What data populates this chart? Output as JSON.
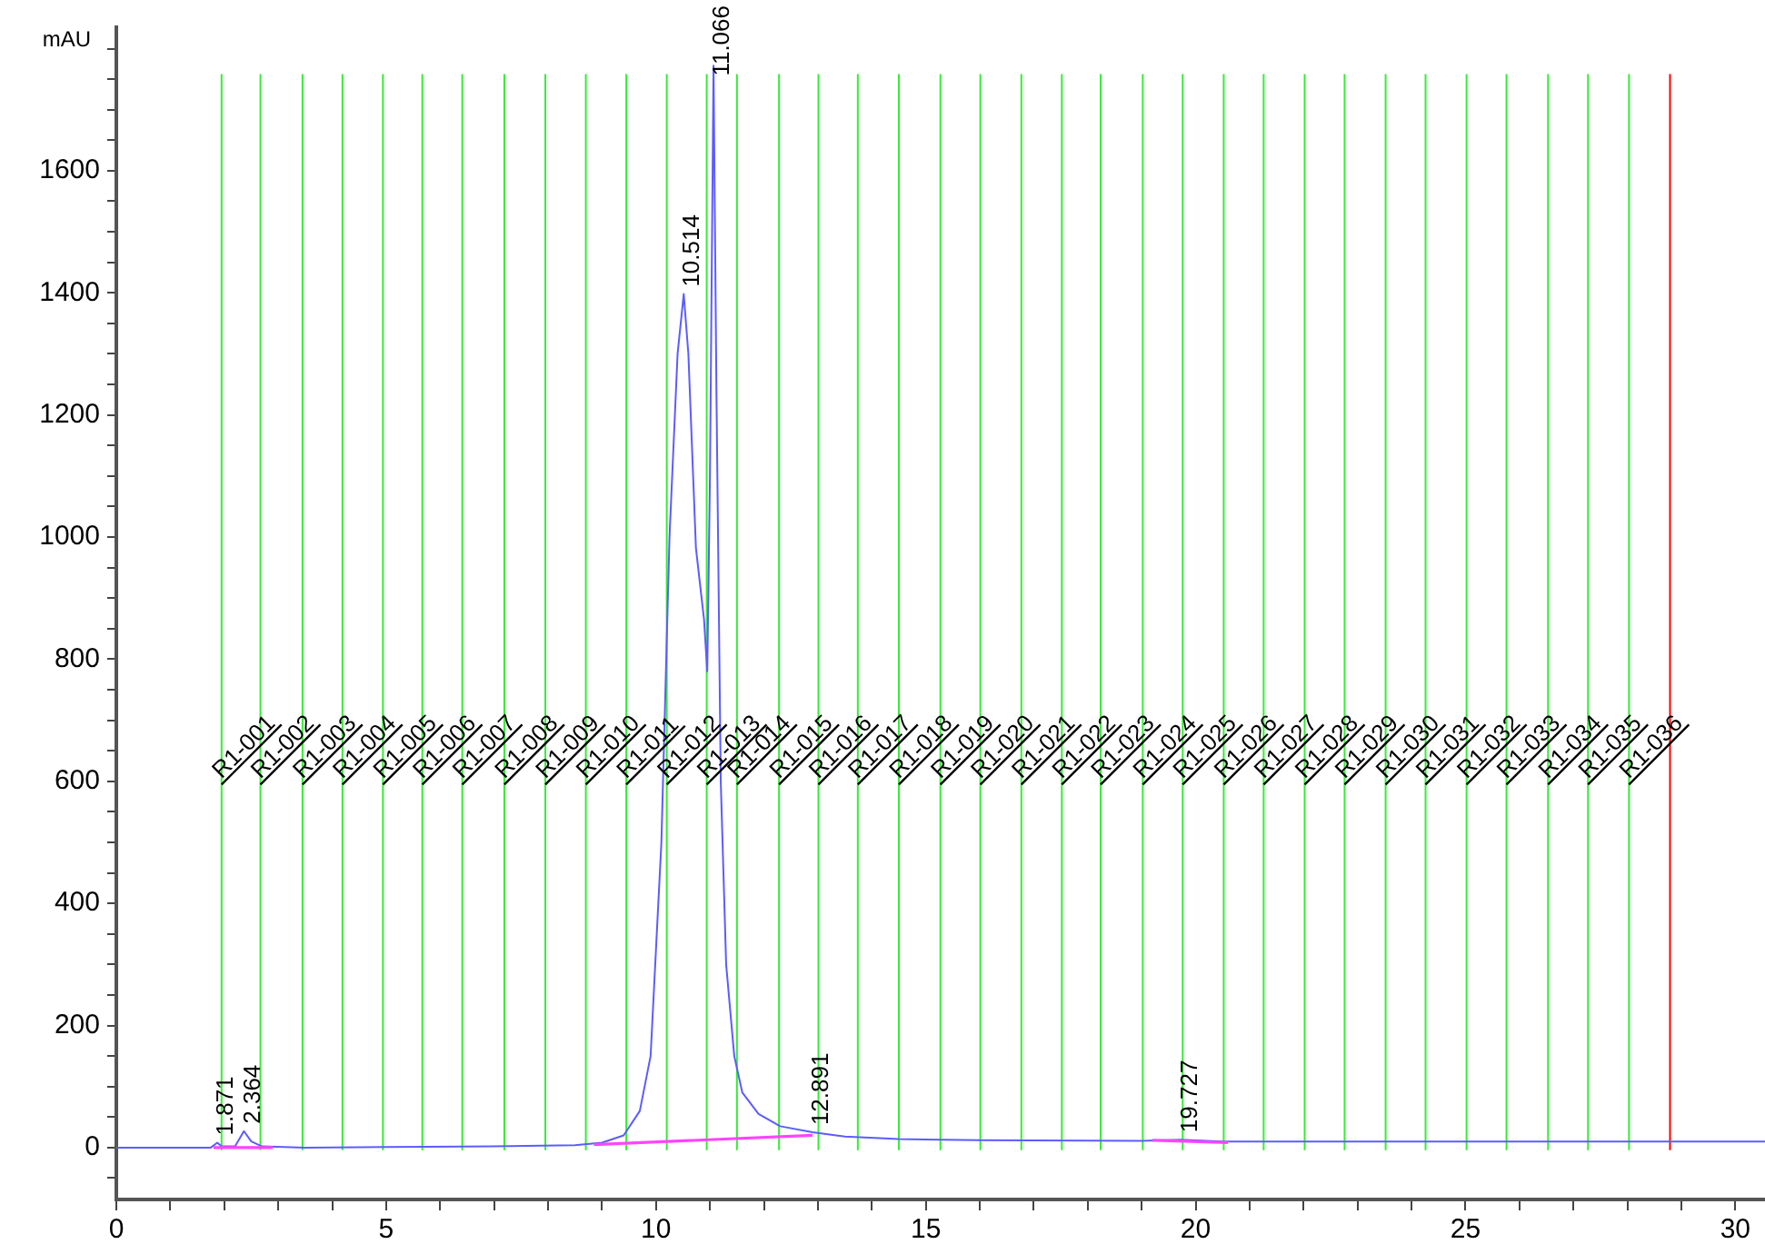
{
  "chart_data": {
    "type": "line",
    "ylabel": "mAU",
    "xlim": [
      0,
      30.55
    ],
    "ylim": [
      -85,
      1835
    ],
    "xticks": [
      0,
      {
        "value": 1,
        "label": null
      },
      {
        "value": 2,
        "label": null
      },
      {
        "value": 3,
        "label": null
      },
      {
        "value": 4,
        "label": null
      },
      5,
      {
        "value": 6,
        "label": null
      },
      {
        "value": 7,
        "label": null
      },
      {
        "value": 8,
        "label": null
      },
      {
        "value": 9,
        "label": null
      },
      10,
      {
        "value": 11,
        "label": null
      },
      {
        "value": 12,
        "label": null
      },
      {
        "value": 13,
        "label": null
      },
      {
        "value": 14,
        "label": null
      },
      15,
      {
        "value": 16,
        "label": null
      },
      {
        "value": 17,
        "label": null
      },
      {
        "value": 18,
        "label": null
      },
      {
        "value": 19,
        "label": null
      },
      20,
      {
        "value": 21,
        "label": null
      },
      {
        "value": 22,
        "label": null
      },
      {
        "value": 23,
        "label": null
      },
      {
        "value": 24,
        "label": null
      },
      25,
      {
        "value": 26,
        "label": null
      },
      {
        "value": 27,
        "label": null
      },
      {
        "value": 28,
        "label": null
      },
      {
        "value": 29,
        "label": null
      },
      30
    ],
    "yticks": [
      {
        "value": -50,
        "label": null
      },
      0,
      {
        "value": 50,
        "label": null
      },
      {
        "value": 100,
        "label": null
      },
      {
        "value": 150,
        "label": null
      },
      200,
      {
        "value": 250,
        "label": null
      },
      {
        "value": 300,
        "label": null
      },
      {
        "value": 350,
        "label": null
      },
      400,
      {
        "value": 450,
        "label": null
      },
      {
        "value": 500,
        "label": null
      },
      {
        "value": 550,
        "label": null
      },
      600,
      {
        "value": 650,
        "label": null
      },
      {
        "value": 700,
        "label": null
      },
      {
        "value": 750,
        "label": null
      },
      800,
      {
        "value": 850,
        "label": null
      },
      {
        "value": 900,
        "label": null
      },
      {
        "value": 950,
        "label": null
      },
      1000,
      {
        "value": 1050,
        "label": null
      },
      {
        "value": 1100,
        "label": null
      },
      {
        "value": 1150,
        "label": null
      },
      1200,
      {
        "value": 1250,
        "label": null
      },
      {
        "value": 1300,
        "label": null
      },
      {
        "value": 1350,
        "label": null
      },
      1400,
      {
        "value": 1450,
        "label": null
      },
      {
        "value": 1500,
        "label": null
      },
      {
        "value": 1550,
        "label": null
      },
      1600,
      {
        "value": 1650,
        "label": null
      },
      {
        "value": 1700,
        "label": null
      },
      {
        "value": 1750,
        "label": null
      },
      {
        "value": 1800,
        "label": null
      }
    ],
    "grid": false,
    "legend": false,
    "marker": "none",
    "line_style": "solid",
    "series": [
      {
        "color": "#5c5cff",
        "x": [
          0,
          1.0,
          1.75,
          1.871,
          1.95,
          2.2,
          2.364,
          2.5,
          2.7,
          3.5,
          5,
          7,
          8.5,
          9.0,
          9.4,
          9.7,
          9.9,
          10.1,
          10.25,
          10.4,
          10.514,
          10.6,
          10.74,
          10.89,
          10.95,
          11.0,
          11.066,
          11.12,
          11.2,
          11.3,
          11.45,
          11.6,
          11.9,
          12.3,
          12.9,
          13.5,
          14.5,
          16,
          19,
          19.727,
          20.5,
          22,
          30.55
        ],
        "values": [
          0,
          0,
          0,
          8,
          2,
          2,
          27,
          10,
          2,
          0,
          1,
          2,
          4,
          8,
          20,
          60,
          150,
          500,
          1000,
          1300,
          1398,
          1300,
          982,
          865,
          780,
          1100,
          1772,
          1240,
          600,
          300,
          150,
          90,
          55,
          35,
          25,
          18,
          14,
          12,
          11,
          13,
          10,
          10,
          10
        ]
      },
      {
        "color": "#ff44ff",
        "x": [
          1.8,
          2.9,
          2.95,
          8.85,
          12.9,
          12.95,
          19.2,
          20.6
        ],
        "values": [
          0,
          0,
          null,
          5,
          20,
          null,
          12,
          8
        ]
      }
    ],
    "ref_lines": [
      {
        "axis": "x",
        "value": 1.95,
        "label": "R1-001",
        "color": "#33ee33"
      },
      {
        "axis": "x",
        "value": 2.67,
        "label": "R1-002",
        "color": "#33ee33"
      },
      {
        "axis": "x",
        "value": 3.45,
        "label": "R1-003",
        "color": "#33ee33"
      },
      {
        "axis": "x",
        "value": 4.19,
        "label": "R1-004",
        "color": "#33ee33"
      },
      {
        "axis": "x",
        "value": 4.94,
        "label": "R1-005",
        "color": "#33ee33"
      },
      {
        "axis": "x",
        "value": 5.67,
        "label": "R1-006",
        "color": "#33ee33"
      },
      {
        "axis": "x",
        "value": 6.41,
        "label": "R1-007",
        "color": "#33ee33"
      },
      {
        "axis": "x",
        "value": 7.19,
        "label": "R1-008",
        "color": "#33ee33"
      },
      {
        "axis": "x",
        "value": 7.95,
        "label": "R1-009",
        "color": "#33ee33"
      },
      {
        "axis": "x",
        "value": 8.7,
        "label": "R1-010",
        "color": "#33ee33"
      },
      {
        "axis": "x",
        "value": 9.45,
        "label": "R1-011",
        "color": "#33ee33"
      },
      {
        "axis": "x",
        "value": 10.2,
        "label": "R1-012",
        "color": "#33ee33"
      },
      {
        "axis": "x",
        "value": 10.94,
        "label": "R1-013",
        "color": "#33ee33"
      },
      {
        "axis": "x",
        "value": 11.5,
        "label": "R1-014",
        "color": "#33ee33"
      },
      {
        "axis": "x",
        "value": 12.28,
        "label": "R1-015",
        "color": "#33ee33"
      },
      {
        "axis": "x",
        "value": 13.01,
        "label": "R1-016",
        "color": "#33ee33"
      },
      {
        "axis": "x",
        "value": 13.74,
        "label": "R1-017",
        "color": "#33ee33"
      },
      {
        "axis": "x",
        "value": 14.5,
        "label": "R1-018",
        "color": "#33ee33"
      },
      {
        "axis": "x",
        "value": 15.27,
        "label": "R1-019",
        "color": "#33ee33"
      },
      {
        "axis": "x",
        "value": 16.01,
        "label": "R1-020",
        "color": "#33ee33"
      },
      {
        "axis": "x",
        "value": 16.77,
        "label": "R1-021",
        "color": "#33ee33"
      },
      {
        "axis": "x",
        "value": 17.52,
        "label": "R1-022",
        "color": "#33ee33"
      },
      {
        "axis": "x",
        "value": 18.24,
        "label": "R1-023",
        "color": "#33ee33"
      },
      {
        "axis": "x",
        "value": 19.02,
        "label": "R1-024",
        "color": "#33ee33"
      },
      {
        "axis": "x",
        "value": 19.76,
        "label": "R1-025",
        "color": "#33ee33"
      },
      {
        "axis": "x",
        "value": 20.52,
        "label": "R1-026",
        "color": "#33ee33"
      },
      {
        "axis": "x",
        "value": 21.26,
        "label": "R1-027",
        "color": "#33ee33"
      },
      {
        "axis": "x",
        "value": 22.02,
        "label": "R1-028",
        "color": "#33ee33"
      },
      {
        "axis": "x",
        "value": 22.76,
        "label": "R1-029",
        "color": "#33ee33"
      },
      {
        "axis": "x",
        "value": 23.52,
        "label": "R1-030",
        "color": "#33ee33"
      },
      {
        "axis": "x",
        "value": 24.26,
        "label": "R1-031",
        "color": "#33ee33"
      },
      {
        "axis": "x",
        "value": 25.02,
        "label": "R1-032",
        "color": "#33ee33"
      },
      {
        "axis": "x",
        "value": 25.76,
        "label": "R1-033",
        "color": "#33ee33"
      },
      {
        "axis": "x",
        "value": 26.53,
        "label": "R1-034",
        "color": "#33ee33"
      },
      {
        "axis": "x",
        "value": 27.27,
        "label": "R1-035",
        "color": "#33ee33"
      },
      {
        "axis": "x",
        "value": 28.03,
        "label": "R1-036",
        "color": "#33ee33"
      },
      {
        "axis": "x",
        "value": 28.79,
        "color": "#ff0000"
      }
    ],
    "annotations": [
      {
        "text": "1.871",
        "x": 1.871,
        "y": 8
      },
      {
        "text": "2.364",
        "x": 2.364,
        "y": 27
      },
      {
        "text": "10.514",
        "x": 10.514,
        "y": 1398
      },
      {
        "text": "11.066",
        "x": 11.066,
        "y": 1772
      },
      {
        "text": "12.891",
        "x": 12.891,
        "y": 25
      },
      {
        "text": "19.727",
        "x": 19.727,
        "y": 13
      }
    ]
  }
}
